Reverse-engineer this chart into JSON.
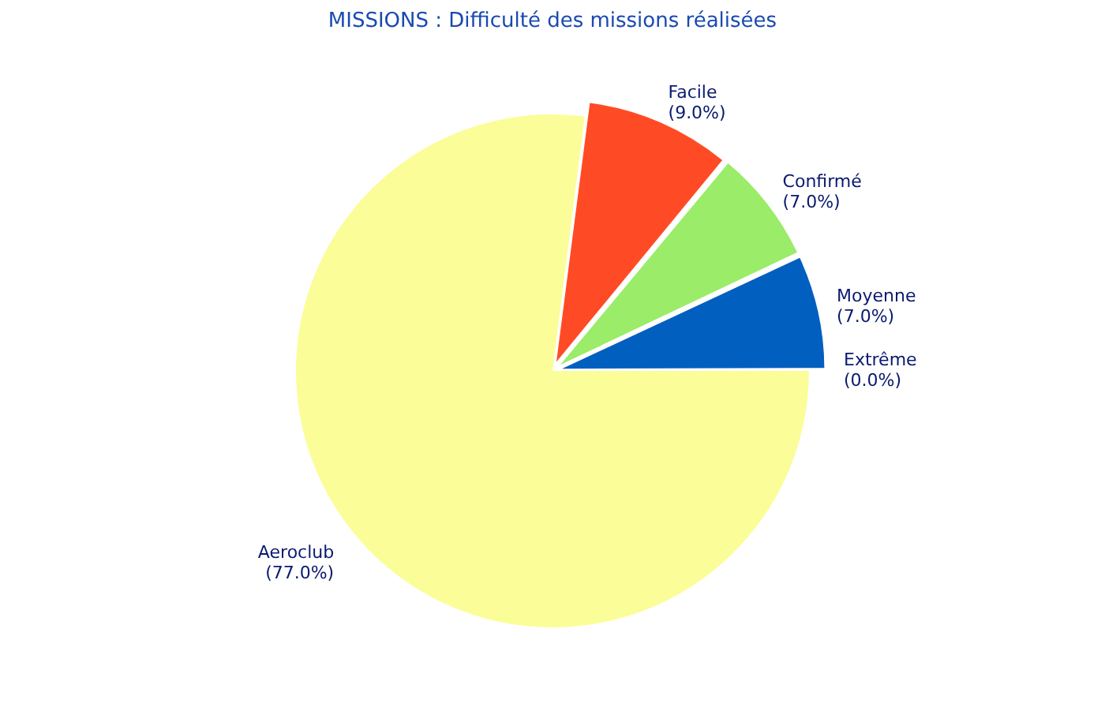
{
  "chart_data": {
    "type": "pie",
    "title": "MISSIONS : Difficulté des missions réalisées",
    "categories": [
      "Extrême",
      "Aeroclub",
      "Facile",
      "Confirmé",
      "Moyenne"
    ],
    "values": [
      0,
      77,
      9,
      7,
      7
    ],
    "colors": [
      "#1a1a1a",
      "#fbfd98",
      "#ff4b25",
      "#9bec69",
      "#005fbf"
    ],
    "value_labels": [
      "(0.0%)",
      "(77.0%)",
      "(9.0%)",
      "(7.0%)",
      "(7.0%)"
    ],
    "legend": false
  }
}
